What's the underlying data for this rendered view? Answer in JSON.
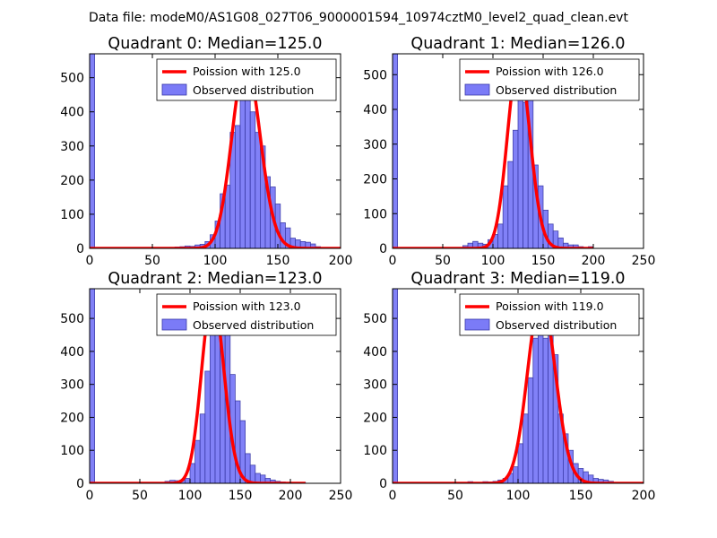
{
  "figure_title": "Data file: modeM0/AS1G08_027T06_9000001594_10974cztM0_level2_quad_clean.evt",
  "colors": {
    "bar_fill": "#7b7bf7",
    "bar_edge": "#3a3aa8",
    "fit_line": "#ff0000",
    "text": "#000000"
  },
  "chart_data": [
    {
      "type": "bar",
      "title": "Quadrant 0: Median=125.0",
      "median": 125.0,
      "xlim": [
        0,
        200
      ],
      "ylim": [
        0,
        570
      ],
      "xticks": [
        0,
        50,
        100,
        150,
        200
      ],
      "yticks": [
        0,
        100,
        200,
        300,
        400,
        500
      ],
      "bin_width": 4,
      "zero_bin_value": 570,
      "bins": [
        [
          64,
          3
        ],
        [
          68,
          4
        ],
        [
          72,
          5
        ],
        [
          76,
          7
        ],
        [
          80,
          6
        ],
        [
          84,
          10
        ],
        [
          88,
          12
        ],
        [
          92,
          20
        ],
        [
          96,
          40
        ],
        [
          100,
          80
        ],
        [
          104,
          160
        ],
        [
          108,
          185
        ],
        [
          112,
          340
        ],
        [
          116,
          360
        ],
        [
          120,
          445
        ],
        [
          124,
          540
        ],
        [
          128,
          400
        ],
        [
          132,
          340
        ],
        [
          136,
          300
        ],
        [
          140,
          210
        ],
        [
          144,
          180
        ],
        [
          148,
          130
        ],
        [
          152,
          75
        ],
        [
          156,
          60
        ],
        [
          160,
          30
        ],
        [
          164,
          25
        ],
        [
          168,
          20
        ],
        [
          172,
          18
        ],
        [
          176,
          13
        ],
        [
          180,
          5
        ]
      ],
      "fit_label": "Poission with 125.0",
      "hist_label": "Observed distribution",
      "fit_x_range": [
        0,
        200
      ]
    },
    {
      "type": "bar",
      "title": "Quadrant 1: Median=126.0",
      "median": 126.0,
      "xlim": [
        0,
        250
      ],
      "ylim": [
        0,
        560
      ],
      "xticks": [
        0,
        50,
        100,
        150,
        200,
        250
      ],
      "yticks": [
        0,
        100,
        200,
        300,
        400,
        500
      ],
      "bin_width": 5,
      "zero_bin_value": 560,
      "bins": [
        [
          70,
          8
        ],
        [
          75,
          15
        ],
        [
          80,
          20
        ],
        [
          85,
          15
        ],
        [
          90,
          12
        ],
        [
          95,
          25
        ],
        [
          100,
          40
        ],
        [
          105,
          70
        ],
        [
          110,
          180
        ],
        [
          115,
          250
        ],
        [
          120,
          340
        ],
        [
          125,
          480
        ],
        [
          130,
          420
        ],
        [
          135,
          430
        ],
        [
          140,
          240
        ],
        [
          145,
          180
        ],
        [
          150,
          110
        ],
        [
          155,
          70
        ],
        [
          160,
          50
        ],
        [
          165,
          30
        ],
        [
          170,
          15
        ],
        [
          175,
          10
        ],
        [
          180,
          10
        ],
        [
          185,
          5
        ],
        [
          195,
          5
        ]
      ],
      "fit_label": "Poission with 126.0",
      "hist_label": "Observed distribution",
      "fit_x_range": [
        0,
        200
      ]
    },
    {
      "type": "bar",
      "title": "Quadrant 2: Median=123.0",
      "median": 123.0,
      "xlim": [
        0,
        250
      ],
      "ylim": [
        0,
        590
      ],
      "xticks": [
        0,
        50,
        100,
        150,
        200,
        250
      ],
      "yticks": [
        0,
        100,
        200,
        300,
        400,
        500
      ],
      "bin_width": 5,
      "zero_bin_value": 590,
      "bins": [
        [
          75,
          6
        ],
        [
          80,
          9
        ],
        [
          85,
          8
        ],
        [
          90,
          10
        ],
        [
          95,
          15
        ],
        [
          100,
          60
        ],
        [
          105,
          130
        ],
        [
          110,
          210
        ],
        [
          115,
          340
        ],
        [
          120,
          520
        ],
        [
          125,
          560
        ],
        [
          130,
          480
        ],
        [
          135,
          460
        ],
        [
          140,
          330
        ],
        [
          145,
          250
        ],
        [
          150,
          190
        ],
        [
          155,
          90
        ],
        [
          160,
          55
        ],
        [
          165,
          30
        ],
        [
          170,
          25
        ],
        [
          175,
          15
        ],
        [
          180,
          10
        ],
        [
          185,
          6
        ],
        [
          190,
          4
        ],
        [
          200,
          3
        ],
        [
          210,
          3
        ]
      ],
      "fit_label": "Poission with 123.0",
      "hist_label": "Observed distribution",
      "fit_x_range": [
        0,
        215
      ]
    },
    {
      "type": "bar",
      "title": "Quadrant 3: Median=119.0",
      "median": 119.0,
      "xlim": [
        0,
        200
      ],
      "ylim": [
        0,
        590
      ],
      "xticks": [
        0,
        50,
        100,
        150,
        200
      ],
      "yticks": [
        0,
        100,
        200,
        300,
        400,
        500
      ],
      "bin_width": 4,
      "zero_bin_value": 590,
      "bins": [
        [
          60,
          5
        ],
        [
          72,
          5
        ],
        [
          76,
          4
        ],
        [
          80,
          6
        ],
        [
          84,
          10
        ],
        [
          88,
          15
        ],
        [
          92,
          30
        ],
        [
          96,
          50
        ],
        [
          100,
          120
        ],
        [
          104,
          210
        ],
        [
          108,
          320
        ],
        [
          112,
          440
        ],
        [
          116,
          530
        ],
        [
          120,
          440
        ],
        [
          124,
          570
        ],
        [
          128,
          390
        ],
        [
          132,
          210
        ],
        [
          136,
          150
        ],
        [
          140,
          100
        ],
        [
          144,
          60
        ],
        [
          148,
          45
        ],
        [
          152,
          35
        ],
        [
          156,
          25
        ],
        [
          160,
          15
        ],
        [
          164,
          12
        ],
        [
          168,
          10
        ],
        [
          172,
          6
        ],
        [
          176,
          3
        ]
      ],
      "fit_label": "Poission with 119.0",
      "hist_label": "Observed distribution",
      "fit_x_range": [
        0,
        200
      ]
    }
  ]
}
